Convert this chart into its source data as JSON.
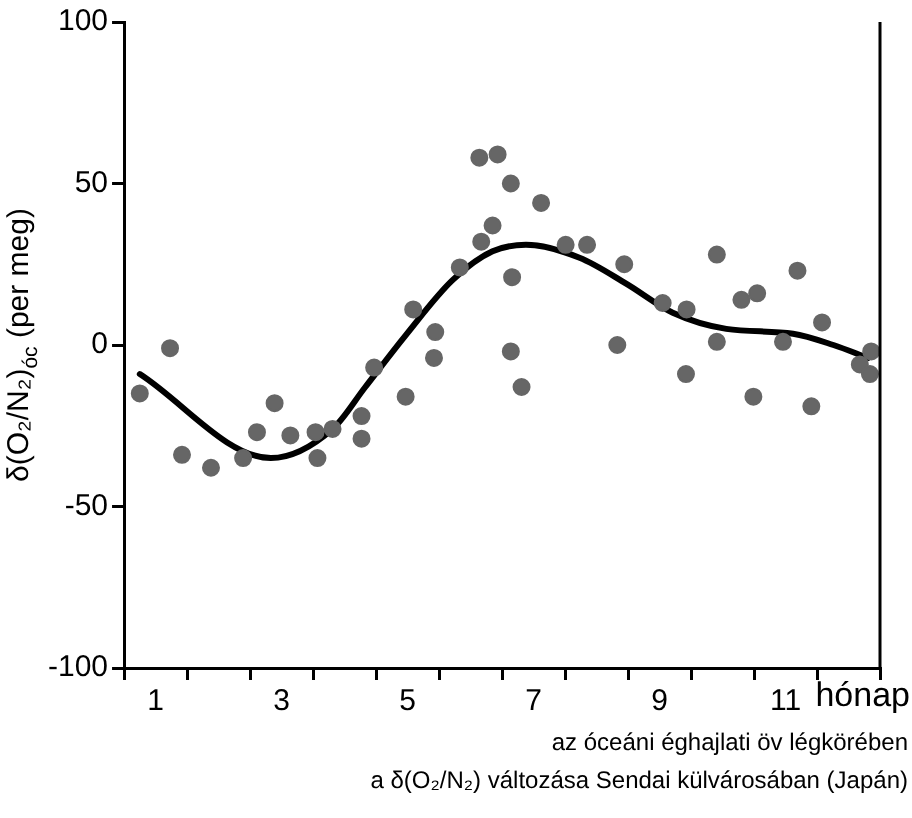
{
  "chart_data": {
    "type": "scatter",
    "ylabel": "δ(O₂/N₂)$_{óc}$ (per meg)",
    "xlabel": "hónap",
    "annotations": [
      "az óceáni éghajlati öv légkörében",
      "a δ(O₂/N₂) változása Sendai külvárosában (Japán)"
    ],
    "xlim": [
      0.5,
      12.5
    ],
    "ylim": [
      -100,
      100
    ],
    "xticks": [
      {
        "value": 0.5,
        "label": null
      },
      1,
      {
        "value": 1.5,
        "label": null
      },
      {
        "value": 2.5,
        "label": null
      },
      3,
      {
        "value": 3.5,
        "label": null
      },
      {
        "value": 4.5,
        "label": null
      },
      5,
      {
        "value": 5.5,
        "label": null
      },
      {
        "value": 6.5,
        "label": null
      },
      7,
      {
        "value": 7.5,
        "label": null
      },
      {
        "value": 8.5,
        "label": null
      },
      9,
      {
        "value": 9.5,
        "label": null
      },
      {
        "value": 10.5,
        "label": null
      },
      11,
      {
        "value": 11.5,
        "label": null
      },
      {
        "value": 12.5,
        "label": null
      }
    ],
    "yticks": [
      -100,
      -50,
      0,
      50,
      100
    ],
    "grid": false,
    "series": [
      {
        "type": "scatter",
        "color": "#666666",
        "marker": "circle",
        "x": [
          0.75,
          1.23,
          1.42,
          1.88,
          2.39,
          2.61,
          2.89,
          3.14,
          3.54,
          3.57,
          3.81,
          4.27,
          4.27,
          4.47,
          4.97,
          5.09,
          5.42,
          5.44,
          5.83,
          6.14,
          6.17,
          6.35,
          6.43,
          6.64,
          6.64,
          6.66,
          6.81,
          7.12,
          7.51,
          7.85,
          8.33,
          8.44,
          9.05,
          9.42,
          9.43,
          9.91,
          9.91,
          10.3,
          10.49,
          10.55,
          10.96,
          11.19,
          11.41,
          11.58,
          12.18,
          12.34,
          12.36
        ],
        "values": [
          -15,
          -1,
          -34,
          -38,
          -35,
          -27,
          -18,
          -28,
          -27,
          -35,
          -26,
          -22,
          -29,
          -7,
          -16,
          11,
          -4,
          4,
          24,
          58,
          32,
          37,
          59,
          50,
          -2,
          21,
          -13,
          44,
          31,
          31,
          0,
          25,
          13,
          -9,
          11,
          28,
          1,
          14,
          -16,
          16,
          1,
          23,
          -19,
          7,
          -6,
          -9,
          -2
        ]
      },
      {
        "type": "line",
        "color": "#000000",
        "marker": "none",
        "x": [
          0.75,
          2.83,
          3.81,
          4.33,
          4.97,
          5.71,
          6.35,
          6.88,
          7.73,
          8.47,
          9.21,
          10.06,
          11.12,
          11.76,
          12.31
        ],
        "values": [
          -9,
          -35,
          -26,
          -13,
          3,
          20,
          29,
          31,
          27,
          19,
          10,
          5,
          3.5,
          0,
          -4
        ]
      }
    ]
  }
}
